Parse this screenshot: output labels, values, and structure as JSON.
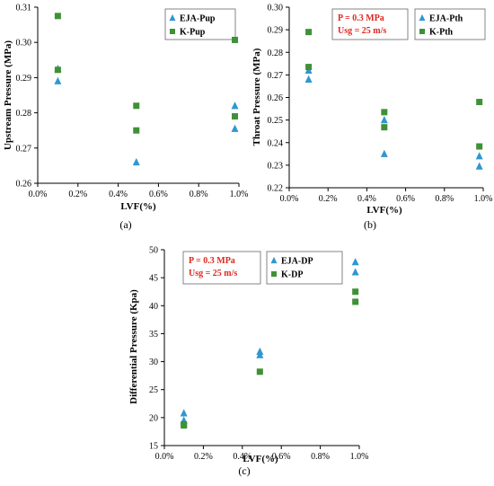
{
  "chart_data": [
    {
      "type": "scatter",
      "panel_label": "(a)",
      "xlabel": "LVF(%)",
      "ylabel": "Upstream Pressure  (MPa)",
      "xlim": [
        0,
        1.0
      ],
      "ylim": [
        0.26,
        0.31
      ],
      "xticks": [
        0,
        0.2,
        0.4,
        0.6,
        0.8,
        1.0
      ],
      "xtick_labels": [
        "0.0%",
        "0.2%",
        "0.4%",
        "0.6%",
        "0.8%",
        "1.0%"
      ],
      "yticks": [
        0.26,
        0.27,
        0.28,
        0.29,
        0.3,
        0.31
      ],
      "ytick_labels": [
        "0.26",
        "0.27",
        "0.28",
        "0.29",
        "0.30",
        "0.31"
      ],
      "annotation": [],
      "legend_position": "top-right",
      "series": [
        {
          "name": "EJA-Pup",
          "marker": "triangle",
          "color": "#2f97d1",
          "points": [
            [
              0.1,
              0.289
            ],
            [
              0.1,
              0.2925
            ],
            [
              0.49,
              0.266
            ],
            [
              0.98,
              0.2755
            ],
            [
              0.98,
              0.282
            ]
          ]
        },
        {
          "name": "K-Pup",
          "marker": "square",
          "color": "#3f9136",
          "points": [
            [
              0.1,
              0.3075
            ],
            [
              0.1,
              0.2922
            ],
            [
              0.49,
              0.282
            ],
            [
              0.49,
              0.275
            ],
            [
              0.98,
              0.3007
            ],
            [
              0.98,
              0.279
            ]
          ]
        }
      ]
    },
    {
      "type": "scatter",
      "panel_label": "(b)",
      "xlabel": "LVF(%)",
      "ylabel": "Throat Pressure  (MPa)",
      "xlim": [
        0,
        1.0
      ],
      "ylim": [
        0.22,
        0.3
      ],
      "xticks": [
        0,
        0.2,
        0.4,
        0.6,
        0.8,
        1.0
      ],
      "xtick_labels": [
        "0.0%",
        "0.2%",
        "0.4%",
        "0.6%",
        "0.8%",
        "1.0%"
      ],
      "yticks": [
        0.22,
        0.23,
        0.24,
        0.25,
        0.26,
        0.27,
        0.28,
        0.29,
        0.3
      ],
      "ytick_labels": [
        "0.22",
        "0.23",
        "0.24",
        "0.25",
        "0.26",
        "0.27",
        "0.28",
        "0.29",
        "0.30"
      ],
      "annotation": [
        "P = 0.3 MPa",
        "Usg = 25 m/s"
      ],
      "legend_position": "top-right",
      "series": [
        {
          "name": "EJA-Pth",
          "marker": "triangle",
          "color": "#2f97d1",
          "points": [
            [
              0.1,
              0.268
            ],
            [
              0.1,
              0.272
            ],
            [
              0.49,
              0.235
            ],
            [
              0.49,
              0.25
            ],
            [
              0.98,
              0.234
            ],
            [
              0.98,
              0.2295
            ]
          ]
        },
        {
          "name": "K-Pth",
          "marker": "square",
          "color": "#3f9136",
          "points": [
            [
              0.1,
              0.289
            ],
            [
              0.1,
              0.2735
            ],
            [
              0.49,
              0.2535
            ],
            [
              0.49,
              0.2468
            ],
            [
              0.98,
              0.258
            ],
            [
              0.98,
              0.2383
            ]
          ]
        }
      ]
    },
    {
      "type": "scatter",
      "panel_label": "(c)",
      "xlabel": "LVF(%)",
      "ylabel": "Differential Pressure  (Kpa)",
      "xlim": [
        0,
        1.0
      ],
      "ylim": [
        15,
        50
      ],
      "xticks": [
        0,
        0.2,
        0.4,
        0.6,
        0.8,
        1.0
      ],
      "xtick_labels": [
        "0.0%",
        "0.2%",
        "0.4%",
        "0.6%",
        "0.8%",
        "1.0%"
      ],
      "yticks": [
        15,
        20,
        25,
        30,
        35,
        40,
        45,
        50
      ],
      "ytick_labels": [
        "15",
        "20",
        "25",
        "30",
        "35",
        "40",
        "45",
        "50"
      ],
      "annotation": [
        "P = 0.3 MPa",
        "Usg = 25 m/s"
      ],
      "legend_position": "top-right",
      "series": [
        {
          "name": "EJA-DP",
          "marker": "triangle",
          "color": "#2f97d1",
          "points": [
            [
              0.1,
              20.8
            ],
            [
              0.1,
              19.5
            ],
            [
              0.49,
              31.8
            ],
            [
              0.49,
              31.2
            ],
            [
              0.98,
              47.8
            ],
            [
              0.98,
              46.0
            ]
          ]
        },
        {
          "name": "K-DP",
          "marker": "square",
          "color": "#3f9136",
          "points": [
            [
              0.1,
              18.8
            ],
            [
              0.1,
              18.6
            ],
            [
              0.49,
              28.2
            ],
            [
              0.98,
              42.5
            ],
            [
              0.98,
              40.7
            ]
          ]
        }
      ]
    }
  ],
  "colors": {
    "annotation_text": "#e0261e",
    "axis": "#000000",
    "box_border": "#666666"
  }
}
